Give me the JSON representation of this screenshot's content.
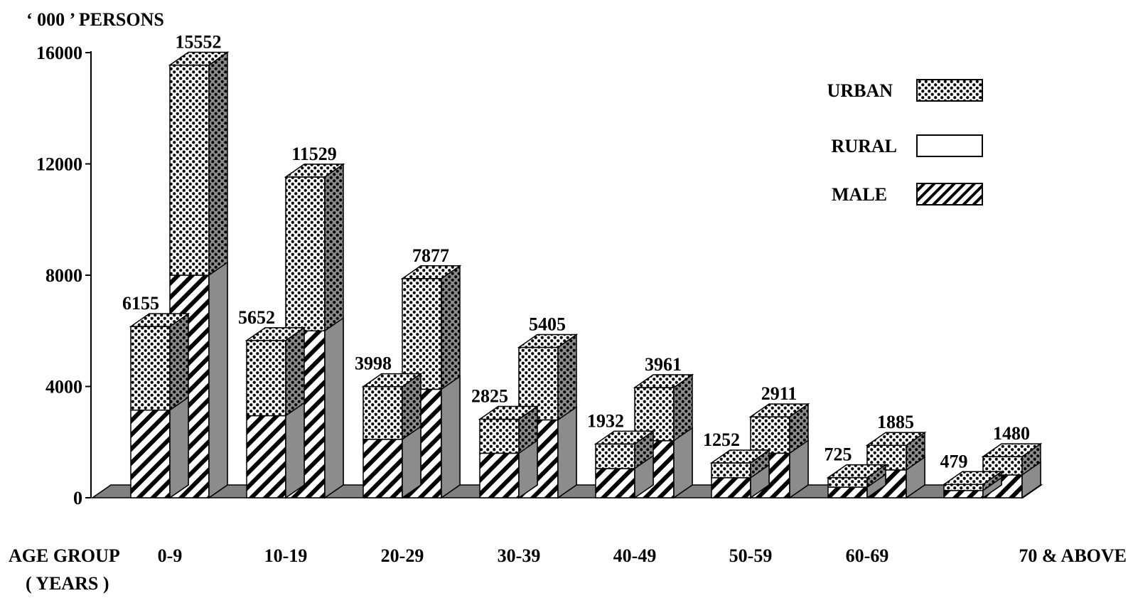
{
  "chart_data": {
    "type": "bar",
    "title": "",
    "ylabel": "‘ 000 ’ PERSONS",
    "xlabel_line1": "AGE GROUP",
    "xlabel_line2": "( YEARS )",
    "ylim": [
      0,
      16000
    ],
    "yticks": [
      0,
      4000,
      8000,
      12000,
      16000
    ],
    "categories": [
      "0-9",
      "10-19",
      "20-29",
      "30-39",
      "40-49",
      "50-59",
      "60-69",
      "70 & ABOVE"
    ],
    "series_labels": [
      "URBAN",
      "RURAL"
    ],
    "totals": {
      "URBAN": [
        6155,
        5652,
        3998,
        2825,
        1932,
        1252,
        725,
        479
      ],
      "RURAL": [
        15552,
        11529,
        7877,
        5405,
        3961,
        2911,
        1885,
        1480
      ]
    },
    "male_portion": {
      "URBAN": [
        3150,
        2950,
        2100,
        1600,
        1050,
        720,
        380,
        260
      ],
      "RURAL": [
        8000,
        6000,
        3900,
        2800,
        2050,
        1600,
        1000,
        820
      ]
    },
    "legend": [
      {
        "label": "URBAN",
        "pattern": "dots"
      },
      {
        "label": "RURAL",
        "pattern": "plain"
      },
      {
        "label": "MALE",
        "pattern": "hatch"
      }
    ],
    "legend_position": "top-right",
    "colors": {
      "floor": "#808080",
      "side": "#8c8c8c",
      "ink": "#000000",
      "paper": "#ffffff"
    }
  }
}
